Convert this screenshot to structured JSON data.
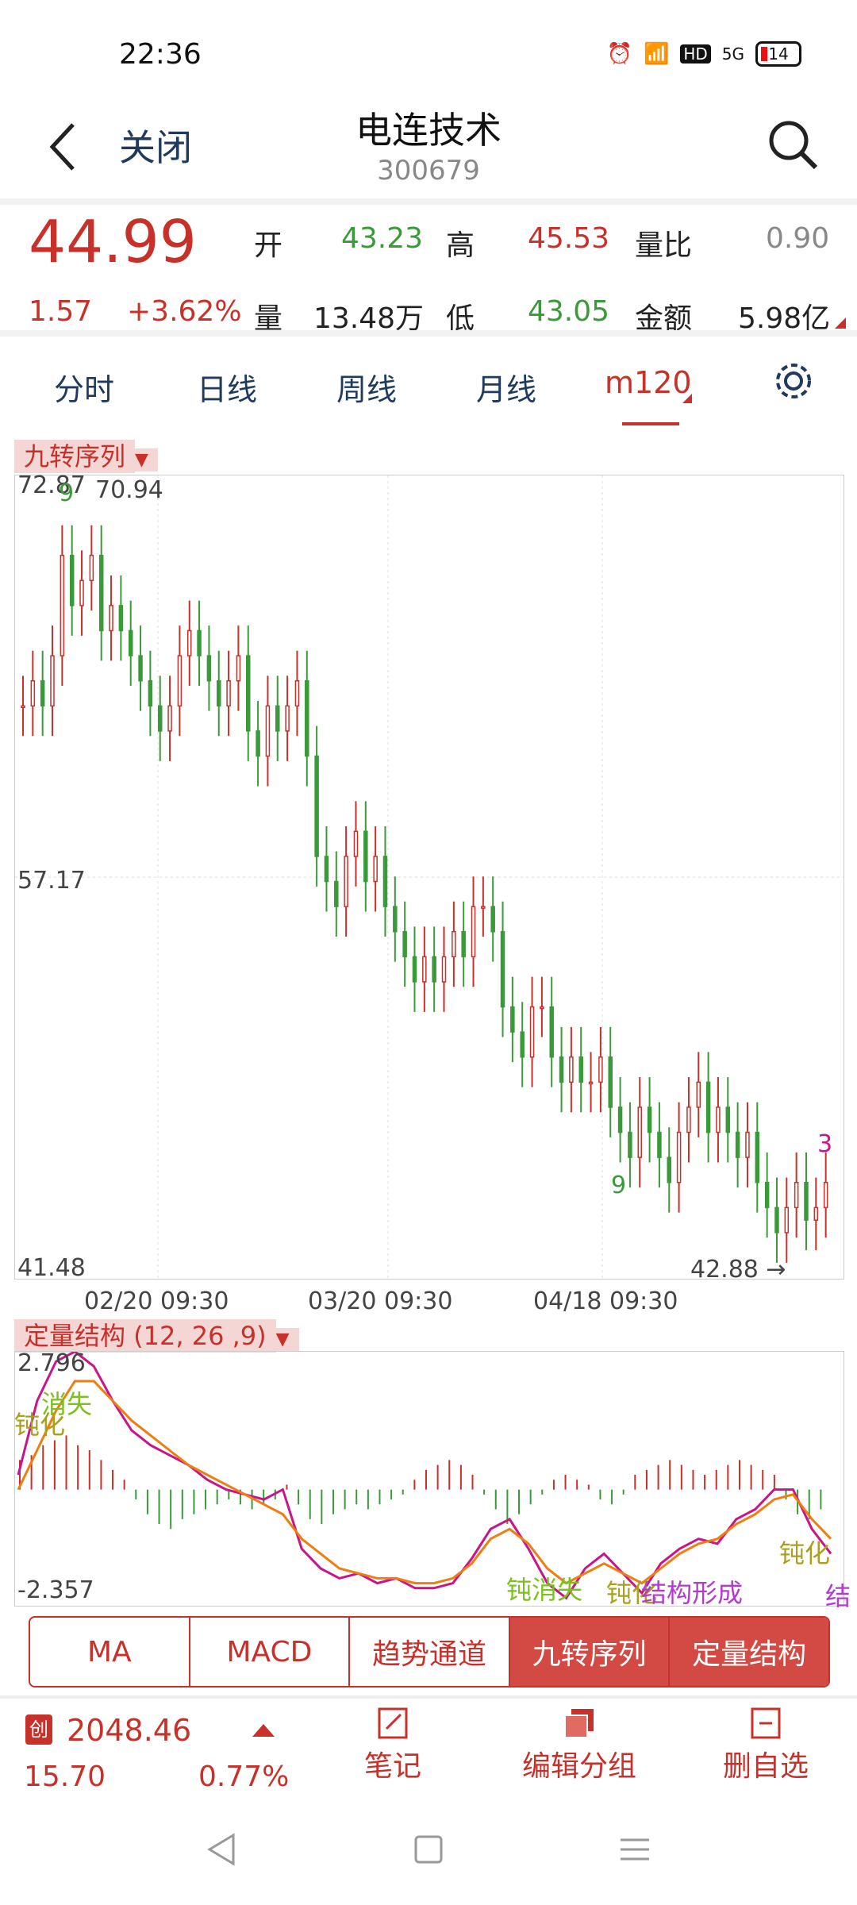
{
  "status_bar": {
    "time": "22:36",
    "signal": "5G",
    "hd": "HD",
    "battery": "14"
  },
  "header": {
    "back_label": "关闭",
    "stock_name": "电连技术",
    "stock_code": "300679"
  },
  "quote": {
    "price": "44.99",
    "change": "1.57",
    "change_pct": "+3.62%",
    "open_label": "开",
    "open": "43.23",
    "high_label": "高",
    "high": "45.53",
    "volume_ratio_label": "量比",
    "volume_ratio": "0.90",
    "volume_label": "量",
    "volume": "13.48万",
    "low_label": "低",
    "low": "43.05",
    "amount_label": "金额",
    "amount": "5.98亿"
  },
  "period_tabs": [
    "分时",
    "日线",
    "周线",
    "月线",
    "m120"
  ],
  "active_period": "m120",
  "kline_panel": {
    "indicator_label": "九转序列",
    "y_top": "72.87",
    "y_mid": "57.17",
    "y_bottom": "41.48",
    "max_annotation": "70.94",
    "min_annotation": "42.88 →",
    "x_labels": [
      "02/20 09:30",
      "03/20 09:30",
      "04/18 09:30"
    ],
    "marks": {
      "top_nine": "9",
      "mid_nine": "9",
      "right_three": "3"
    }
  },
  "macd_panel": {
    "indicator_label": "定量结构 (12, 26 ,9)",
    "y_top": "2.796",
    "y_bottom": "-2.357",
    "annotations": [
      "钝化",
      "消失",
      "钝消失",
      "钝化",
      "结构形成",
      "钝化",
      "结"
    ]
  },
  "indicator_tabs": [
    "MA",
    "MACD",
    "趋势通道",
    "九转序列",
    "定量结构"
  ],
  "active_indicator": "九转序列",
  "bottom_bar": {
    "index_badge": "创",
    "index_value": "2048.46",
    "index_change": "15.70",
    "index_pct": "0.77%",
    "actions": [
      "笔记",
      "编辑分组",
      "删自选"
    ]
  },
  "colors": {
    "up": "#c8302a",
    "down": "#3a9a3a",
    "accent": "#c8302a",
    "active_tab_bg": "#d24a43"
  },
  "chart_data": [
    {
      "type": "candlestick",
      "title": "九转序列",
      "x_ticks": [
        "02/20 09:30",
        "03/20 09:30",
        "04/18 09:30"
      ],
      "y_ticks": [
        72.87,
        57.17,
        41.48
      ],
      "ylim": [
        41.48,
        72.87
      ],
      "max": 70.94,
      "min": 42.88,
      "close": [
        64,
        65,
        64,
        66,
        70,
        68,
        69,
        70,
        67,
        68,
        67,
        66,
        65,
        64,
        63,
        64,
        66,
        67,
        66,
        65,
        64,
        65,
        66,
        63,
        62,
        64,
        63,
        64,
        65,
        62,
        58,
        57,
        56,
        58,
        59,
        57,
        58,
        56,
        55,
        54,
        53,
        54,
        53,
        54,
        55,
        54,
        56,
        56,
        55,
        52,
        51,
        50,
        52,
        52,
        50,
        49,
        50,
        49,
        49,
        50,
        48,
        47,
        46,
        48,
        47,
        46,
        45,
        47,
        48,
        49,
        47,
        48,
        47,
        46,
        47,
        45,
        44,
        43,
        44,
        45,
        43.5,
        44,
        45
      ]
    },
    {
      "type": "bar+line",
      "title": "定量结构 (12, 26 ,9)",
      "ylim": [
        -2.357,
        2.796
      ],
      "histogram": [
        0.6,
        0.7,
        0.9,
        1.0,
        1.1,
        0.9,
        0.8,
        0.6,
        0.4,
        0.2,
        -0.2,
        -0.5,
        -0.7,
        -0.8,
        -0.6,
        -0.5,
        -0.4,
        -0.3,
        -0.2,
        -0.3,
        -0.4,
        -0.3,
        -0.2,
        0.1,
        -0.3,
        -0.6,
        -0.7,
        -0.5,
        -0.4,
        -0.3,
        -0.4,
        -0.3,
        -0.2,
        -0.1,
        0.2,
        0.4,
        0.5,
        0.6,
        0.5,
        0.3,
        -0.1,
        -0.4,
        -0.7,
        -0.5,
        -0.3,
        -0.1,
        0.2,
        0.3,
        0.2,
        0.1,
        -0.2,
        -0.3,
        -0.1,
        0.3,
        0.4,
        0.5,
        0.6,
        0.5,
        0.4,
        0.3,
        0.4,
        0.5,
        0.6,
        0.5,
        0.4,
        0.3,
        -0.2,
        -0.5,
        -0.6,
        -0.4
      ],
      "series": [
        {
          "name": "line1",
          "color": "#c8168a",
          "values": [
            0.3,
            1.8,
            2.6,
            2.8,
            2.5,
            1.8,
            1.2,
            0.9,
            0.7,
            0.5,
            0.2,
            0.0,
            -0.1,
            -0.2,
            0.0,
            -1.2,
            -1.6,
            -1.8,
            -1.7,
            -1.9,
            -1.8,
            -2.0,
            -2.0,
            -1.9,
            -1.4,
            -0.8,
            -0.6,
            -1.2,
            -1.9,
            -2.2,
            -1.6,
            -1.3,
            -1.7,
            -2.1,
            -1.5,
            -1.2,
            -1.0,
            -1.1,
            -0.6,
            -0.4,
            0.0,
            0.0,
            -0.8,
            -1.3
          ]
        },
        {
          "name": "line2",
          "color": "#ef7d0f",
          "values": [
            0.0,
            0.8,
            1.6,
            2.2,
            2.2,
            1.8,
            1.4,
            1.1,
            0.8,
            0.5,
            0.3,
            0.1,
            -0.1,
            -0.3,
            -0.5,
            -1.0,
            -1.3,
            -1.6,
            -1.7,
            -1.8,
            -1.8,
            -1.9,
            -1.9,
            -1.8,
            -1.5,
            -1.0,
            -0.8,
            -1.1,
            -1.6,
            -1.9,
            -1.7,
            -1.5,
            -1.7,
            -1.9,
            -1.6,
            -1.3,
            -1.1,
            -1.0,
            -0.7,
            -0.5,
            -0.2,
            -0.1,
            -0.6,
            -1.0
          ]
        }
      ]
    }
  ]
}
